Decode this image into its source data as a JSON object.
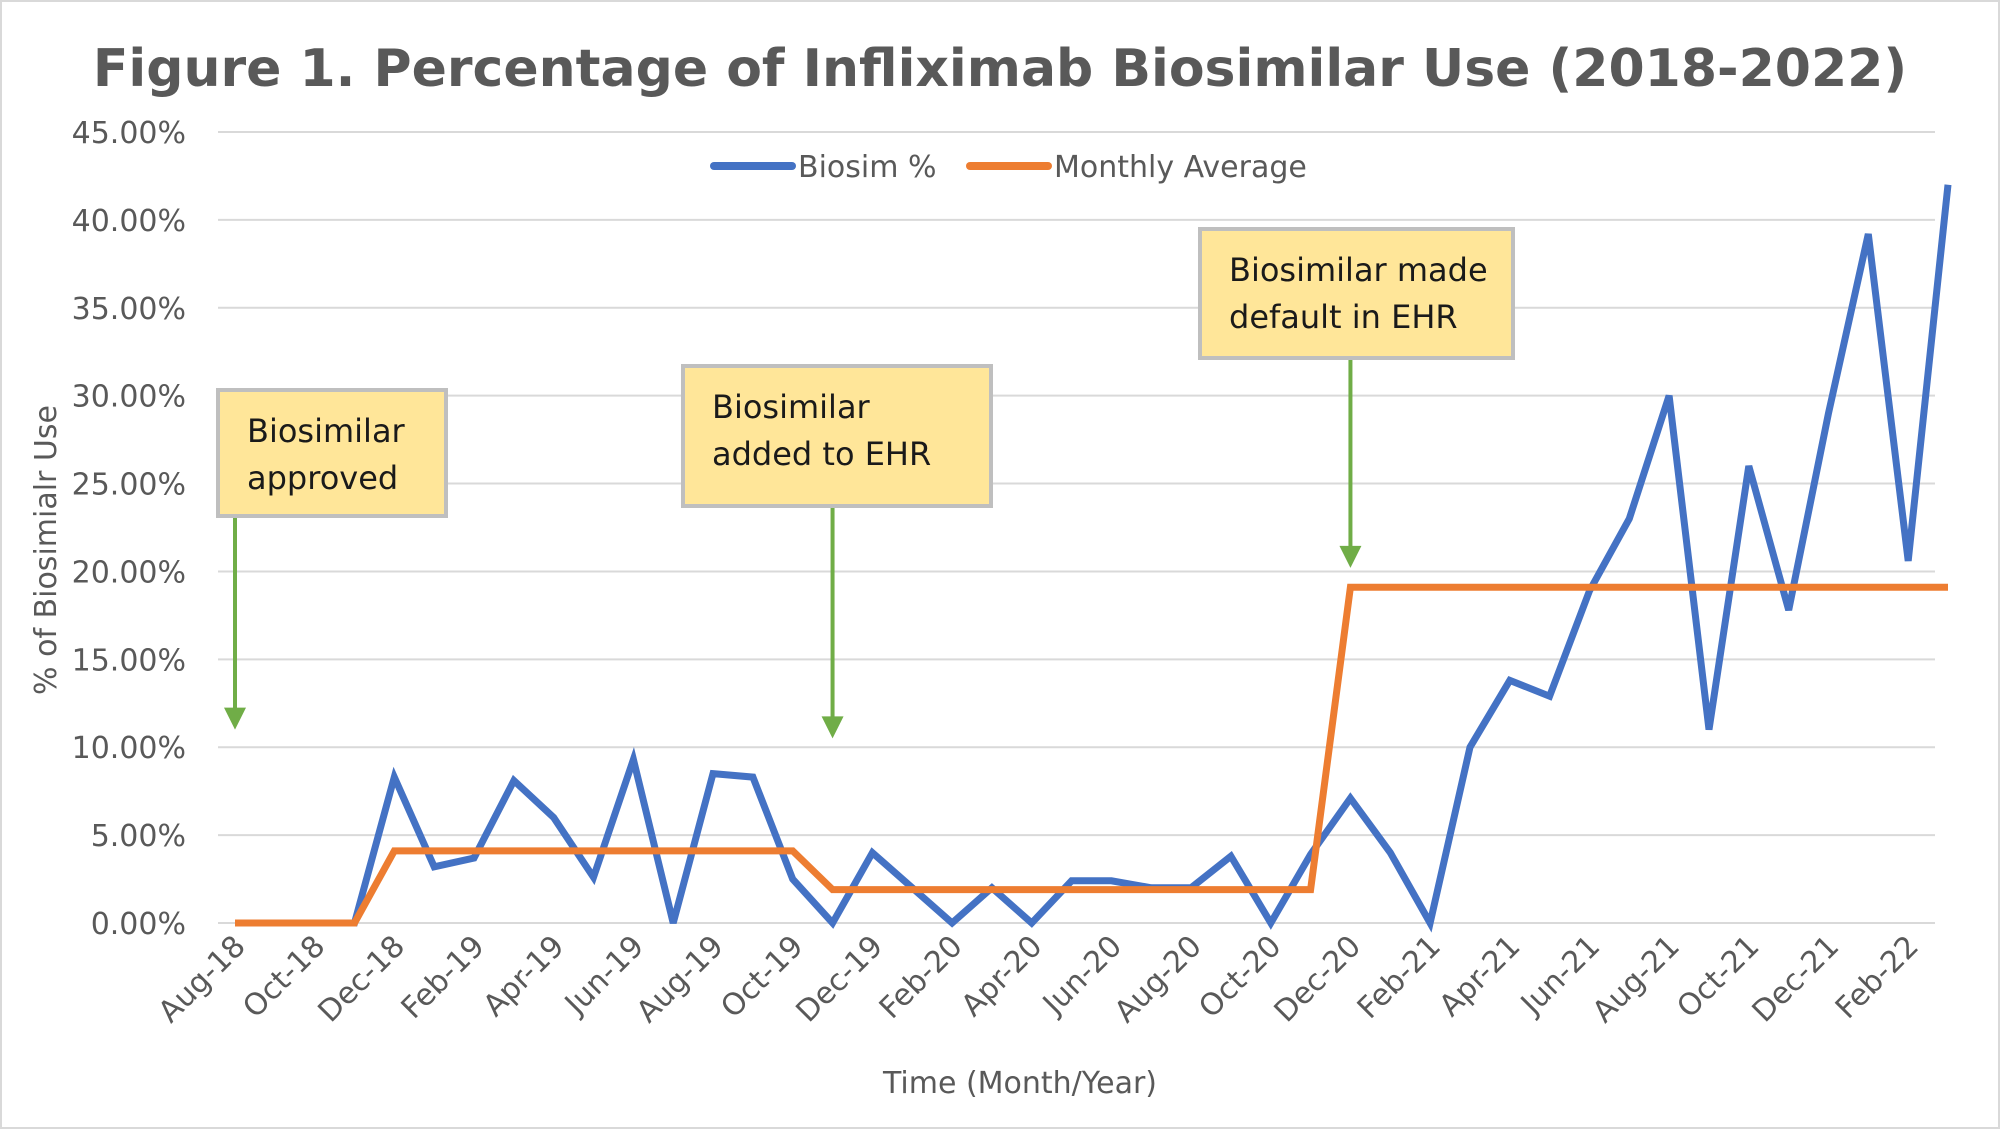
{
  "chart_data": {
    "type": "line",
    "title": "Figure 1. Percentage of Infliximab Biosimilar Use (2018-2022)",
    "xlabel": "Time (Month/Year)",
    "ylabel": "% of Biosimialr Use",
    "ylim": [
      0,
      45
    ],
    "yticks": [
      0,
      5,
      10,
      15,
      20,
      25,
      30,
      35,
      40,
      45
    ],
    "ytick_labels": [
      "0.00%",
      "5.00%",
      "10.00%",
      "15.00%",
      "20.00%",
      "25.00%",
      "30.00%",
      "35.00%",
      "40.00%",
      "45.00%"
    ],
    "grid": true,
    "legend_position": "top-center",
    "x": [
      "Aug-18",
      "Sep-18",
      "Oct-18",
      "Nov-18",
      "Dec-18",
      "Jan-19",
      "Feb-19",
      "Mar-19",
      "Apr-19",
      "May-19",
      "Jun-19",
      "Jul-19",
      "Aug-19",
      "Sep-19",
      "Oct-19",
      "Nov-19",
      "Dec-19",
      "Jan-20",
      "Feb-20",
      "Mar-20",
      "Apr-20",
      "May-20",
      "Jun-20",
      "Jul-20",
      "Aug-20",
      "Sep-20",
      "Oct-20",
      "Nov-20",
      "Dec-20",
      "Jan-21",
      "Feb-21",
      "Mar-21",
      "Apr-21",
      "May-21",
      "Jun-21",
      "Jul-21",
      "Aug-21",
      "Sep-21",
      "Oct-21",
      "Nov-21",
      "Dec-21",
      "Jan-22",
      "Feb-22",
      "Mar-22"
    ],
    "x_tick_labels": [
      "Aug-18",
      "Oct-18",
      "Dec-18",
      "Feb-19",
      "Apr-19",
      "Jun-19",
      "Aug-19",
      "Oct-19",
      "Dec-19",
      "Feb-20",
      "Apr-20",
      "Jun-20",
      "Aug-20",
      "Oct-20",
      "Dec-20",
      "Feb-21",
      "Apr-21",
      "Jun-21",
      "Aug-21",
      "Oct-21",
      "Dec-21",
      "Feb-22"
    ],
    "series": [
      {
        "name": "Biosim %",
        "color": "#4472C4",
        "values": [
          0,
          0,
          0,
          0,
          8.3,
          3.2,
          3.7,
          8.1,
          6.0,
          2.6,
          9.3,
          0,
          8.5,
          8.3,
          2.5,
          0,
          4.0,
          2.0,
          0,
          2.0,
          0,
          2.4,
          2.4,
          2.0,
          2.0,
          3.8,
          0,
          3.9,
          7.1,
          4.0,
          0,
          10.0,
          13.8,
          12.9,
          18.9,
          23.0,
          30.0,
          11.0,
          26.0,
          17.8,
          29.0,
          39.2,
          20.6,
          42.0
        ]
      },
      {
        "name": "Monthly Average",
        "color": "#ED7D31",
        "values": [
          0,
          0,
          0,
          0,
          4.1,
          4.1,
          4.1,
          4.1,
          4.1,
          4.1,
          4.1,
          4.1,
          4.1,
          4.1,
          4.1,
          1.9,
          1.9,
          1.9,
          1.9,
          1.9,
          1.9,
          1.9,
          1.9,
          1.9,
          1.9,
          1.9,
          1.9,
          1.9,
          19.1,
          19.1,
          19.1,
          19.1,
          19.1,
          19.1,
          19.1,
          19.1,
          19.1,
          19.1,
          19.1,
          19.1,
          19.1,
          19.1,
          19.1,
          19.1
        ]
      }
    ],
    "annotations": [
      {
        "lines": [
          "Biosimilar",
          "approved"
        ],
        "arrow_to_x": "Aug-18",
        "arrow_to_y": 11
      },
      {
        "lines": [
          "Biosimilar",
          "added to EHR"
        ],
        "arrow_to_x": "Nov-19",
        "arrow_to_y": 10.5
      },
      {
        "lines": [
          "Biosimilar made",
          "default in EHR"
        ],
        "arrow_to_x": "Dec-20",
        "arrow_to_y": 20.2
      }
    ],
    "colors": {
      "grid": "#D9D9D9",
      "text": "#595959",
      "annotation_fill": "#FFE699",
      "annotation_border": "#BFBFBF",
      "arrow": "#70AD47"
    }
  }
}
